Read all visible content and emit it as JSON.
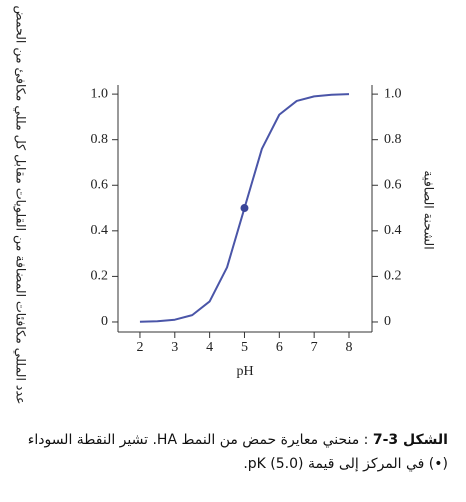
{
  "chart_data": {
    "type": "line",
    "y_label": "عدد المللي مكافئات المضافة من القلويات مقابل كل مللي مكافئ من الحمض",
    "y2_label": "الشحنة الصافية",
    "x_label": "pH",
    "x": [
      2,
      2.5,
      3,
      3.5,
      4,
      4.5,
      5,
      5.5,
      6,
      6.5,
      7,
      7.5,
      8
    ],
    "series": [
      {
        "color": "#4a55a8",
        "values": [
          0.001,
          0.003,
          0.01,
          0.03,
          0.09,
          0.24,
          0.5,
          0.76,
          0.91,
          0.97,
          0.99,
          0.997,
          1.0
        ]
      }
    ],
    "point": {
      "x": 5,
      "y": 0.5,
      "color": "#3a4699"
    },
    "xlim": [
      1.37,
      8.66
    ],
    "ylim": [
      -0.044,
      1.04
    ],
    "y2lim": [
      -0.044,
      1.04
    ],
    "xticks": [
      2,
      3,
      4,
      5,
      6,
      7,
      8
    ],
    "yticks": [
      0,
      {
        "value": 0.2,
        "label": "0.2"
      },
      {
        "value": 0.4,
        "label": "0.4"
      },
      {
        "value": 0.6,
        "label": "0.6"
      },
      {
        "value": 0.8,
        "label": "0.8"
      },
      {
        "value": 1,
        "label": "1.0"
      }
    ],
    "y2ticks": [
      0,
      {
        "value": 0.2,
        "label": "0.2"
      },
      {
        "value": 0.4,
        "label": "0.4"
      },
      {
        "value": 0.6,
        "label": "0.6"
      },
      {
        "value": 0.8,
        "label": "0.8"
      },
      {
        "value": 1,
        "label": "1.0"
      }
    ]
  },
  "caption": {
    "label": "الشكل 3-7",
    "text": ": منحني معايرة حمض من النمط HA. تشير النقطة السوداء (•) في المركز إلى قيمة (5.0) pK."
  }
}
